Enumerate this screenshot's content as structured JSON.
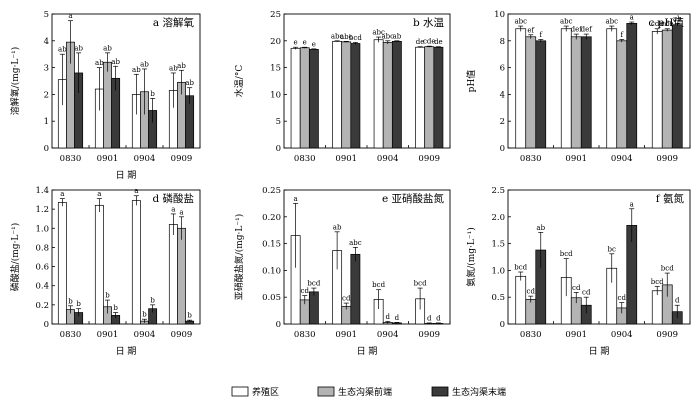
{
  "legend": [
    {
      "name": "养殖区",
      "color": "#ffffff"
    },
    {
      "name": "生态沟渠前端",
      "color": "#b4b4b4"
    },
    {
      "name": "生态沟渠末端",
      "color": "#3a3a3a"
    }
  ],
  "chart_data": [
    {
      "type": "bar",
      "title": "a 溶解氧",
      "xlabel": "日 期",
      "ylabel": "溶解氧/(mg·L⁻¹)",
      "categories": [
        "0830",
        "0901",
        "0904",
        "0909"
      ],
      "ylim": [
        0,
        5
      ],
      "yticks": [
        0,
        1,
        2,
        3,
        4,
        5
      ],
      "ytick_labels": [
        "0",
        "1",
        "2",
        "3",
        "4",
        "5"
      ],
      "series": [
        {
          "values": [
            2.55,
            2.2,
            2.0,
            2.15
          ],
          "errors": [
            0.95,
            0.8,
            0.75,
            0.65
          ],
          "labels": [
            "ab",
            "ab",
            "ab",
            "ab"
          ]
        },
        {
          "values": [
            3.95,
            3.2,
            2.1,
            2.45
          ],
          "errors": [
            0.8,
            0.35,
            0.85,
            0.45
          ],
          "labels": [
            "a",
            "ab",
            "ab",
            "ab"
          ]
        },
        {
          "values": [
            2.8,
            2.6,
            1.4,
            1.95
          ],
          "errors": [
            0.75,
            0.45,
            0.45,
            0.3
          ],
          "labels": [
            "ab",
            "ab",
            "b",
            "ab"
          ]
        }
      ]
    },
    {
      "type": "bar",
      "title": "b 水温",
      "xlabel": "",
      "ylabel": "水温/°C",
      "categories": [
        "0830",
        "0901",
        "0904",
        "0909"
      ],
      "ylim": [
        0,
        25
      ],
      "yticks": [
        0,
        5,
        10,
        15,
        20,
        25
      ],
      "ytick_labels": [
        "0",
        "5",
        "10",
        "15",
        "20",
        "25"
      ],
      "series": [
        {
          "values": [
            18.6,
            19.9,
            20.2,
            18.8
          ],
          "errors": [
            0.2,
            0.1,
            0.5,
            0.1
          ],
          "labels": [
            "e",
            "abc",
            "abc",
            "de"
          ]
        },
        {
          "values": [
            18.7,
            19.8,
            19.7,
            18.9
          ],
          "errors": [
            0.1,
            0.1,
            0.3,
            0.1
          ],
          "labels": [
            "e",
            "abc",
            "abc",
            "cde"
          ]
        },
        {
          "values": [
            18.4,
            19.5,
            19.9,
            18.8
          ],
          "errors": [
            0.1,
            0.2,
            0.1,
            0.1
          ],
          "labels": [
            "e",
            "bcd",
            "ab",
            "de"
          ]
        }
      ]
    },
    {
      "type": "bar",
      "title": "c pH值",
      "xlabel": "",
      "ylabel": "pH值",
      "categories": [
        "0830",
        "0901",
        "0904",
        "0909"
      ],
      "ylim": [
        0,
        10
      ],
      "yticks": [
        0,
        2,
        4,
        6,
        8,
        10
      ],
      "ytick_labels": [
        "0",
        "2",
        "4",
        "6",
        "8",
        "10"
      ],
      "series": [
        {
          "values": [
            8.9,
            8.9,
            8.9,
            8.7
          ],
          "errors": [
            0.2,
            0.2,
            0.2,
            0.2
          ],
          "labels": [
            "abc",
            "abc",
            "abc",
            "cde"
          ]
        },
        {
          "values": [
            8.3,
            8.3,
            8.0,
            8.8
          ],
          "errors": [
            0.15,
            0.2,
            0.1,
            0.1
          ],
          "labels": [
            "ef",
            "def",
            "f",
            "cde"
          ]
        },
        {
          "values": [
            8.0,
            8.3,
            9.3,
            9.2
          ],
          "errors": [
            0.1,
            0.2,
            0.1,
            0.1
          ],
          "labels": [
            "f",
            "def",
            "a",
            "ab"
          ]
        }
      ]
    },
    {
      "type": "bar",
      "title": "d 磷酸盐",
      "xlabel": "日 期",
      "ylabel": "磷酸盐/(mg·L⁻¹)",
      "categories": [
        "0830",
        "0901",
        "0904",
        "0909"
      ],
      "ylim": [
        0,
        1.4
      ],
      "yticks": [
        0,
        0.2,
        0.4,
        0.6,
        0.8,
        1.0,
        1.2,
        1.4
      ],
      "ytick_labels": [
        "0",
        "0.2",
        "0.4",
        "0.6",
        "0.8",
        "1.0",
        "1.2",
        "1.4"
      ],
      "series": [
        {
          "values": [
            1.27,
            1.24,
            1.29,
            1.04
          ],
          "errors": [
            0.04,
            0.07,
            0.05,
            0.11
          ],
          "labels": [
            "a",
            "a",
            "a",
            "a"
          ]
        },
        {
          "values": [
            0.15,
            0.18,
            0.03,
            1.0
          ],
          "errors": [
            0.04,
            0.07,
            0.02,
            0.12
          ],
          "labels": [
            "b",
            "b",
            "b",
            "a"
          ]
        },
        {
          "values": [
            0.12,
            0.09,
            0.16,
            0.03
          ],
          "errors": [
            0.04,
            0.03,
            0.04,
            0.01
          ],
          "labels": [
            "b",
            "b",
            "b",
            "b"
          ]
        }
      ]
    },
    {
      "type": "bar",
      "title": "e 亚硝酸盐氮",
      "xlabel": "日 期",
      "ylabel": "亚硝酸盐氮/(mg·L⁻¹)",
      "categories": [
        "0830",
        "0901",
        "0904",
        "0909"
      ],
      "ylim": [
        0,
        0.25
      ],
      "yticks": [
        0,
        0.05,
        0.1,
        0.15,
        0.2,
        0.25
      ],
      "ytick_labels": [
        "0",
        "0.05",
        "0.10",
        "0.15",
        "0.20",
        "0.25"
      ],
      "series": [
        {
          "values": [
            0.165,
            0.137,
            0.046,
            0.047
          ],
          "errors": [
            0.06,
            0.035,
            0.018,
            0.02
          ],
          "labels": [
            "a",
            "ab",
            "bcd",
            "bcd"
          ]
        },
        {
          "values": [
            0.045,
            0.033,
            0.003,
            0.001
          ],
          "errors": [
            0.008,
            0.006,
            0.002,
            0.001
          ],
          "labels": [
            "cd",
            "cd",
            "d",
            "d"
          ]
        },
        {
          "values": [
            0.06,
            0.13,
            0.002,
            0.001
          ],
          "errors": [
            0.007,
            0.013,
            0.001,
            0.001
          ],
          "labels": [
            "bcd",
            "abc",
            "d",
            "d"
          ]
        }
      ]
    },
    {
      "type": "bar",
      "title": "f 氨氮",
      "xlabel": "日 期",
      "ylabel": "氨氮/(mg·L⁻¹)",
      "categories": [
        "0830",
        "0901",
        "0904",
        "0909"
      ],
      "ylim": [
        0,
        2.5
      ],
      "yticks": [
        0,
        0.5,
        1.0,
        1.5,
        2.0,
        2.5
      ],
      "ytick_labels": [
        "0",
        "0.5",
        "1.0",
        "1.5",
        "2.0",
        "2.5"
      ],
      "series": [
        {
          "values": [
            0.89,
            0.87,
            1.04,
            0.62
          ],
          "errors": [
            0.08,
            0.35,
            0.27,
            0.08
          ],
          "labels": [
            "bcd",
            "bcd",
            "bc",
            "bcd"
          ]
        },
        {
          "values": [
            0.46,
            0.49,
            0.3,
            0.73
          ],
          "errors": [
            0.06,
            0.1,
            0.1,
            0.22
          ],
          "labels": [
            "cd",
            "cd",
            "cd",
            "bcd"
          ]
        },
        {
          "values": [
            1.38,
            0.35,
            1.84,
            0.23
          ],
          "errors": [
            0.33,
            0.15,
            0.31,
            0.12
          ],
          "labels": [
            "ab",
            "cd",
            "a",
            "d"
          ]
        }
      ]
    }
  ]
}
